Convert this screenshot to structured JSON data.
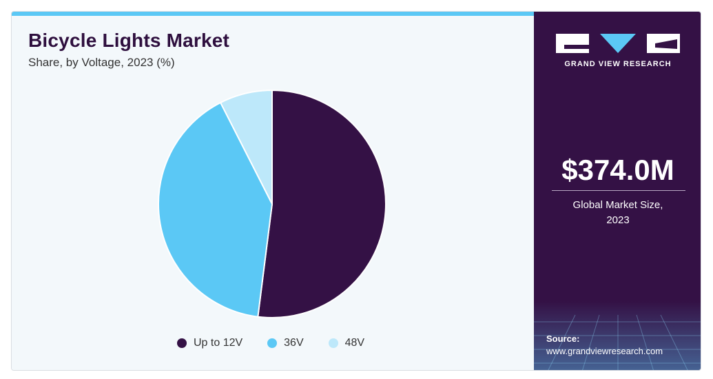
{
  "header": {
    "title": "Bicycle Lights Market",
    "subtitle": "Share, by Voltage, 2023 (%)"
  },
  "chart_data": {
    "type": "pie",
    "categories": [
      "Up to 12V",
      "36V",
      "48V"
    ],
    "values": [
      52.0,
      40.5,
      7.5
    ],
    "colors": [
      "#341145",
      "#5bc8f5",
      "#bde8fa"
    ],
    "legend_position": "bottom"
  },
  "brand": {
    "name": "GRAND VIEW RESEARCH",
    "logo_icon": "gvr-logo-icon"
  },
  "stat": {
    "value": "$374.0M",
    "label_line1": "Global Market Size,",
    "label_line2": "2023"
  },
  "source": {
    "label": "Source:",
    "url": "www.grandviewresearch.com"
  }
}
